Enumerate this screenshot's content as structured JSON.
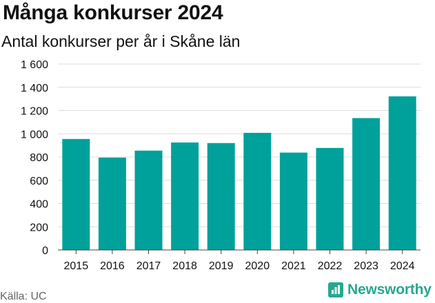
{
  "chart_data": {
    "type": "bar",
    "title": "Många konkurser 2024",
    "subtitle": "Antal konkurser per år i Skåne län",
    "categories": [
      "2015",
      "2016",
      "2017",
      "2018",
      "2019",
      "2020",
      "2021",
      "2022",
      "2023",
      "2024"
    ],
    "values": [
      955,
      795,
      855,
      925,
      920,
      1008,
      838,
      878,
      1135,
      1322
    ],
    "ylim": [
      0,
      1600
    ],
    "yticks": [
      0,
      200,
      400,
      600,
      800,
      1000,
      1200,
      1400,
      1600
    ],
    "ytick_labels": [
      "0",
      "200",
      "400",
      "600",
      "800",
      "1 000",
      "1 200",
      "1 400",
      "1 600"
    ],
    "grid": true,
    "bar_color": "#00a19b",
    "source": "Källa: UC",
    "brand": "Newsworthy",
    "brand_icon": "bar-chart-logo-icon",
    "brand_color": "#27a890"
  }
}
